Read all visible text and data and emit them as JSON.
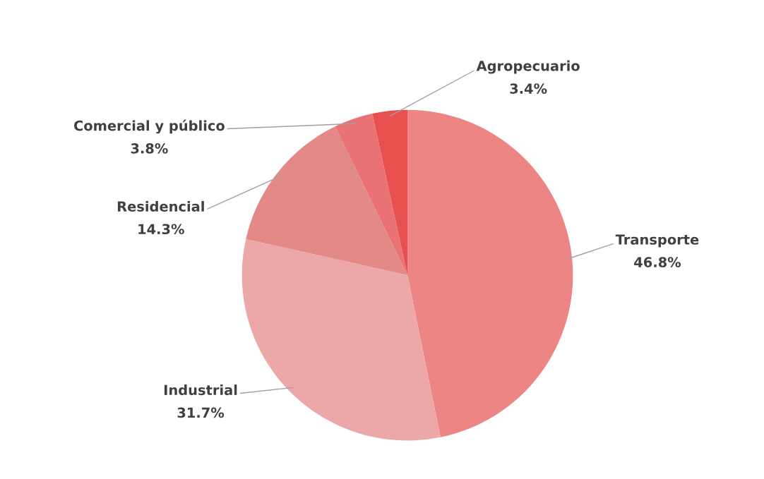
{
  "chart_data": {
    "type": "pie",
    "categories": [
      "Transporte",
      "Industrial",
      "Residencial",
      "Comercial y público",
      "Agropecuario"
    ],
    "values": [
      46.8,
      31.7,
      14.3,
      3.8,
      3.4
    ],
    "value_labels": [
      "46.8%",
      "31.7%",
      "14.3%",
      "3.8%",
      "3.4%"
    ],
    "colors": [
      "#ee8585",
      "#eca8a8",
      "#e38a88",
      "#e87274",
      "#e85050"
    ]
  }
}
